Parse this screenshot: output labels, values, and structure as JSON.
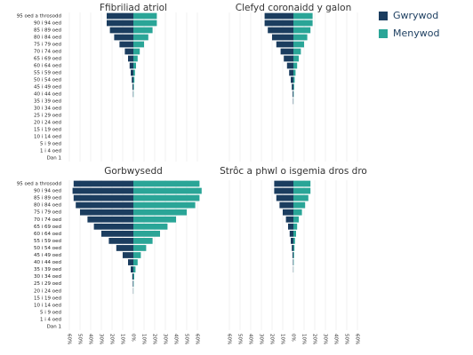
{
  "chart_data": [
    {
      "type": "pyramid",
      "title": "Ffibriliad atriol",
      "categories": [
        "95 oed a throsodd",
        "90 i 94 oed",
        "85 i 89 oed",
        "80 i 84 oed",
        "75 i 79 oed",
        "70 i 74 oed",
        "65 i 69 oed",
        "60 i 64 oed",
        "55 i 59 oed",
        "50 i 54 oed",
        "45 i 49 oed",
        "40 i 44 oed",
        "35 i 39 oed",
        "30 i 34 oed",
        "25 i 29 oed",
        "20 i 24 oed",
        "15 i 19 oed",
        "10 i 14 oed",
        "5 i 9 oed",
        "1 i 4 oed",
        "Dan 1"
      ],
      "series": [
        {
          "name": "Gwrywod",
          "color": "#1b3d5f",
          "side": "left",
          "values": [
            25,
            25,
            22,
            18,
            13,
            8,
            5,
            3.5,
            2.5,
            1.5,
            0.8,
            0.3,
            0,
            0,
            0,
            0,
            0,
            0,
            0,
            0,
            0
          ]
        },
        {
          "name": "Menywod",
          "color": "#2aa597",
          "side": "right",
          "values": [
            22,
            22,
            18,
            14,
            10,
            6,
            4,
            2.5,
            1.5,
            1,
            0.5,
            0.2,
            0,
            0,
            0,
            0,
            0,
            0,
            0,
            0,
            0
          ]
        }
      ],
      "xlim": [
        -65,
        65
      ],
      "xticks": [
        -60,
        -50,
        -40,
        -30,
        -20,
        -10,
        0,
        10,
        20,
        30,
        40,
        50,
        60
      ],
      "grid": true
    },
    {
      "type": "pyramid",
      "title": "Clefyd coronaidd y galon",
      "series": [
        {
          "color": "#1b3d5f",
          "side": "left",
          "values": [
            27,
            27,
            24,
            20,
            16,
            12,
            9,
            6,
            4,
            2.5,
            1.5,
            0.7,
            0.3,
            0,
            0,
            0,
            0,
            0,
            0,
            0,
            0
          ]
        },
        {
          "color": "#2aa597",
          "side": "right",
          "values": [
            18,
            18,
            16,
            13,
            10,
            7,
            5,
            3.5,
            2,
            1.2,
            0.7,
            0.3,
            0.1,
            0,
            0,
            0,
            0,
            0,
            0,
            0,
            0
          ]
        }
      ],
      "xlim": [
        -65,
        65
      ],
      "xticks": [
        -60,
        -50,
        -40,
        -30,
        -20,
        -10,
        0,
        10,
        20,
        30,
        40,
        50,
        60
      ],
      "grid": true
    },
    {
      "type": "pyramid",
      "title": "Gorbwysedd",
      "categories": [
        "95 oed a throsodd",
        "90 i 94 oed",
        "85 i 89 oed",
        "80 i 84 oed",
        "75 i 79 oed",
        "70 i 74 oed",
        "65 i 69 oed",
        "60 i 64 oed",
        "55 i 59 oed",
        "50 i 54 oed",
        "45 i 49 oed",
        "40 i 44 oed",
        "35 i 39 oed",
        "30 i 34 oed",
        "25 i 29 oed",
        "20 i 24 oed",
        "15 i 19 oed",
        "10 i 14 oed",
        "5 i 9 oed",
        "1 i 4 oed",
        "Dan 1"
      ],
      "series": [
        {
          "color": "#1b3d5f",
          "side": "left",
          "values": [
            56,
            57,
            56,
            54,
            50,
            43,
            37,
            30,
            23,
            16,
            10,
            5,
            2.5,
            1,
            0.5,
            0.2,
            0,
            0,
            0,
            0,
            0
          ]
        },
        {
          "color": "#2aa597",
          "side": "right",
          "values": [
            62,
            64,
            62,
            58,
            50,
            40,
            32,
            25,
            18,
            12,
            7,
            4,
            2,
            0.8,
            0.3,
            0.1,
            0,
            0,
            0,
            0,
            0
          ]
        }
      ],
      "xlim": [
        -65,
        65
      ],
      "xticks": [
        {
          "value": -60,
          "label": "60%"
        },
        {
          "value": -50,
          "label": "50%"
        },
        {
          "value": -40,
          "label": "40%"
        },
        {
          "value": -30,
          "label": "30%"
        },
        {
          "value": -20,
          "label": "20%"
        },
        {
          "value": -10,
          "label": "10%"
        },
        {
          "value": 0,
          "label": "0%"
        },
        {
          "value": 10,
          "label": "10%"
        },
        {
          "value": 20,
          "label": "20%"
        },
        {
          "value": 30,
          "label": "30%"
        },
        {
          "value": 40,
          "label": "40%"
        },
        {
          "value": 50,
          "label": "50%"
        },
        {
          "value": 60,
          "label": "60%"
        }
      ],
      "grid": true
    },
    {
      "type": "pyramid",
      "title": "Strôc a phwl o isgemia dros dro",
      "series": [
        {
          "color": "#1b3d5f",
          "side": "left",
          "values": [
            18,
            18,
            16,
            13,
            10,
            7,
            5,
            3.5,
            2.5,
            1.5,
            0.8,
            0.4,
            0.2,
            0,
            0,
            0,
            0,
            0,
            0,
            0,
            0
          ]
        },
        {
          "color": "#2aa597",
          "side": "right",
          "values": [
            16,
            16,
            14,
            11,
            8,
            5,
            3.5,
            2.5,
            1.5,
            1,
            0.6,
            0.3,
            0.1,
            0,
            0,
            0,
            0,
            0,
            0,
            0,
            0
          ]
        }
      ],
      "xlim": [
        -65,
        65
      ],
      "xticks": [
        {
          "value": -60,
          "label": "60%"
        },
        {
          "value": -50,
          "label": "50%"
        },
        {
          "value": -40,
          "label": "40%"
        },
        {
          "value": -30,
          "label": "30%"
        },
        {
          "value": -20,
          "label": "20%"
        },
        {
          "value": -10,
          "label": "10%"
        },
        {
          "value": 0,
          "label": "0%"
        },
        {
          "value": 10,
          "label": "10%"
        },
        {
          "value": 20,
          "label": "20%"
        },
        {
          "value": 30,
          "label": "30%"
        },
        {
          "value": 40,
          "label": "40%"
        },
        {
          "value": 50,
          "label": "50%"
        },
        {
          "value": 60,
          "label": "60%"
        }
      ],
      "grid": true
    }
  ]
}
